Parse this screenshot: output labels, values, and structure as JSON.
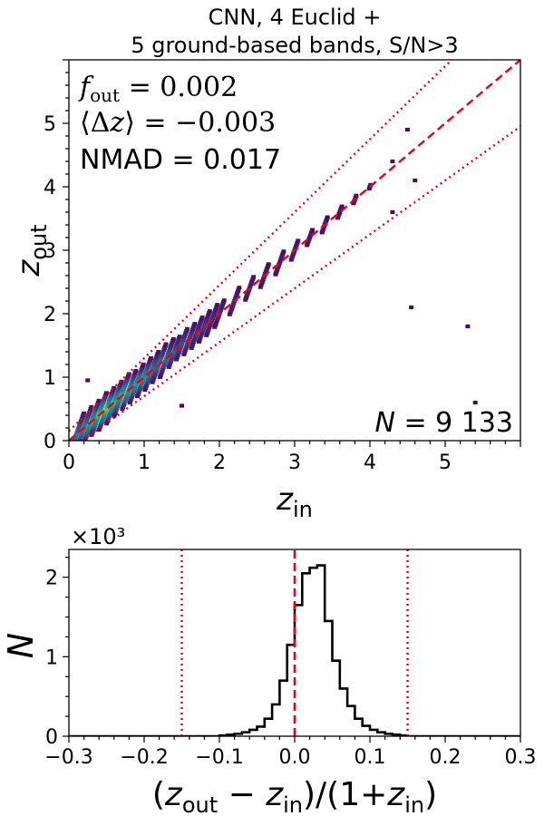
{
  "chart_data": [
    {
      "type": "heatmap",
      "title_line1": "CNN, 4 Euclid +",
      "title_line2": "5 ground-based bands, S/N>3",
      "xlabel": "z_in",
      "ylabel": "z_out",
      "xlim": [
        0,
        6
      ],
      "ylim": [
        0,
        6
      ],
      "xticks": [
        "0",
        "1",
        "2",
        "3",
        "4",
        "5"
      ],
      "yticks": [
        "0",
        "1",
        "2",
        "3",
        "4",
        "5"
      ],
      "annotations": {
        "f_out": "f_out = 0.002",
        "mean_dz": "⟨Δz⟩ = −0.003",
        "nmad": "NMAD = 0.017",
        "n": "N = 9 133"
      },
      "lines": {
        "one_to_one": "dashed red",
        "outlier_bounds": "dotted red, z_out = z_in ± 0.15(1+z_in)"
      },
      "density_points": [
        {
          "x": 0.1,
          "y": 0.1,
          "d": 0.6
        },
        {
          "x": 0.2,
          "y": 0.2,
          "d": 0.7
        },
        {
          "x": 0.3,
          "y": 0.3,
          "d": 0.9
        },
        {
          "x": 0.4,
          "y": 0.42,
          "d": 1.0
        },
        {
          "x": 0.5,
          "y": 0.5,
          "d": 1.0
        },
        {
          "x": 0.6,
          "y": 0.6,
          "d": 0.95
        },
        {
          "x": 0.7,
          "y": 0.72,
          "d": 0.9
        },
        {
          "x": 0.8,
          "y": 0.8,
          "d": 0.85
        },
        {
          "x": 0.9,
          "y": 0.9,
          "d": 0.8
        },
        {
          "x": 1.0,
          "y": 1.0,
          "d": 0.75
        },
        {
          "x": 1.1,
          "y": 1.1,
          "d": 0.65
        },
        {
          "x": 1.2,
          "y": 1.22,
          "d": 0.6
        },
        {
          "x": 1.3,
          "y": 1.3,
          "d": 0.55
        },
        {
          "x": 1.4,
          "y": 1.4,
          "d": 0.5
        },
        {
          "x": 1.5,
          "y": 1.52,
          "d": 0.45
        },
        {
          "x": 1.6,
          "y": 1.6,
          "d": 0.4
        },
        {
          "x": 1.7,
          "y": 1.7,
          "d": 0.35
        },
        {
          "x": 1.8,
          "y": 1.8,
          "d": 0.35
        },
        {
          "x": 1.9,
          "y": 1.9,
          "d": 0.3
        },
        {
          "x": 2.0,
          "y": 2.0,
          "d": 0.28
        },
        {
          "x": 2.2,
          "y": 2.2,
          "d": 0.25
        },
        {
          "x": 2.4,
          "y": 2.4,
          "d": 0.22
        },
        {
          "x": 2.6,
          "y": 2.6,
          "d": 0.2
        },
        {
          "x": 2.8,
          "y": 2.8,
          "d": 0.2
        },
        {
          "x": 3.0,
          "y": 3.0,
          "d": 0.18
        },
        {
          "x": 3.2,
          "y": 3.2,
          "d": 0.15
        },
        {
          "x": 3.4,
          "y": 3.4,
          "d": 0.12
        },
        {
          "x": 3.6,
          "y": 3.6,
          "d": 0.1
        },
        {
          "x": 3.8,
          "y": 3.8,
          "d": 0.08
        },
        {
          "x": 4.0,
          "y": 4.0,
          "d": 0.06
        },
        {
          "x": 4.3,
          "y": 4.4,
          "d": 0.05
        }
      ],
      "outlier_points": [
        {
          "x": 0.25,
          "y": 0.95
        },
        {
          "x": 1.5,
          "y": 0.55
        },
        {
          "x": 4.3,
          "y": 3.6
        },
        {
          "x": 4.55,
          "y": 2.1
        },
        {
          "x": 5.3,
          "y": 1.8
        },
        {
          "x": 5.4,
          "y": 0.6
        },
        {
          "x": 4.6,
          "y": 4.1
        },
        {
          "x": 4.5,
          "y": 4.9
        }
      ]
    },
    {
      "type": "histogram",
      "multiplier_label": "×10³",
      "xlabel": "(z_out − z_in)/(1+z_in)",
      "ylabel": "N",
      "xlim": [
        -0.3,
        0.3
      ],
      "ylim": [
        0,
        2.35
      ],
      "xticks": [
        "−0.3",
        "−0.2",
        "−0.1",
        "0.0",
        "0.1",
        "0.2",
        "0.3"
      ],
      "yticks": [
        "0",
        "1",
        "2"
      ],
      "bin_width": 0.01,
      "bins_start": -0.1,
      "counts": [
        0.01,
        0.02,
        0.03,
        0.05,
        0.08,
        0.12,
        0.22,
        0.4,
        0.7,
        1.15,
        1.65,
        2.05,
        2.12,
        2.15,
        1.45,
        0.95,
        0.6,
        0.38,
        0.22,
        0.13,
        0.08,
        0.05,
        0.03,
        0.02,
        0.01
      ],
      "vlines": {
        "center": 0.0,
        "bounds": [
          -0.15,
          0.15
        ]
      }
    }
  ]
}
